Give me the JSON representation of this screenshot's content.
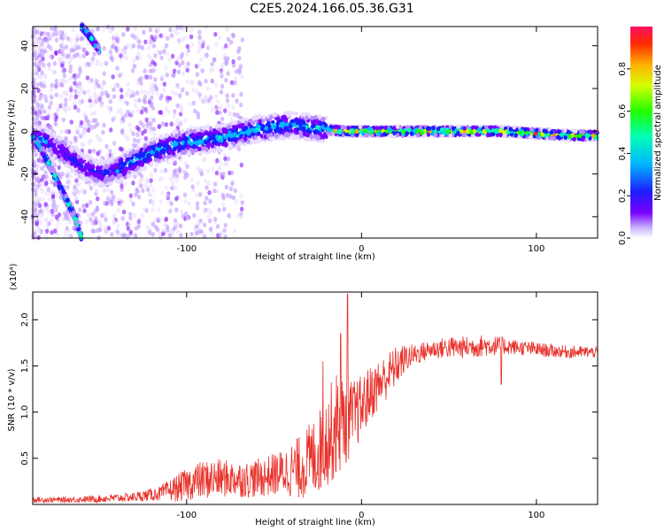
{
  "title": "C2E5.2024.166.05.36.G31",
  "chart_data": [
    {
      "type": "heatmap",
      "xlabel": "Height of straight line (km)",
      "ylabel": "Frequency (Hz)",
      "xlim": [
        -188,
        135
      ],
      "ylim": [
        -50,
        49
      ],
      "xticks": [
        -100,
        0,
        100
      ],
      "yticks": [
        -40,
        -20,
        0,
        20,
        40
      ],
      "colorbar": {
        "label": "Normalized spectral amplitude",
        "range": [
          0,
          1
        ],
        "ticks": [
          0.0,
          0.2,
          0.4,
          0.6,
          0.8
        ]
      },
      "ridges": [
        {
          "name": "main",
          "x": [
            -188,
            -180,
            -170,
            -160,
            -150,
            -140,
            -130,
            -120,
            -110,
            -100,
            -90,
            -80,
            -70,
            -60,
            -50,
            -40,
            -30,
            -20,
            -10,
            0,
            20,
            40,
            60,
            80,
            100,
            120,
            135
          ],
          "y": [
            -3,
            -5,
            -10,
            -16,
            -20,
            -18,
            -14,
            -10,
            -7,
            -5,
            -4,
            -3,
            -1,
            1,
            2,
            3,
            2,
            1,
            0,
            0,
            0,
            0,
            0,
            0,
            -1,
            -2,
            -2
          ]
        },
        {
          "name": "descending",
          "x": [
            -188,
            -182,
            -176,
            -170,
            -164,
            -160
          ],
          "y": [
            -3,
            -10,
            -20,
            -30,
            -40,
            -50
          ]
        },
        {
          "name": "upper",
          "x": [
            -160,
            -155,
            -150
          ],
          "y": [
            49,
            44,
            38
          ]
        }
      ]
    },
    {
      "type": "line",
      "xlabel": "Height of straight line (km)",
      "ylabel": "SNR (10 * v/v)",
      "scale_note": "(x10⁴)",
      "xlim": [
        -188,
        135
      ],
      "ylim": [
        0,
        2.3
      ],
      "xticks": [
        -100,
        0,
        100
      ],
      "yticks": [
        0.5,
        1.0,
        1.5,
        2.0
      ],
      "color": "#e8312a",
      "envelope": {
        "x": [
          -188,
          -170,
          -150,
          -130,
          -115,
          -105,
          -95,
          -85,
          -75,
          -65,
          -55,
          -45,
          -35,
          -25,
          -20,
          -15,
          -10,
          -5,
          0,
          5,
          10,
          15,
          20,
          25,
          30,
          40,
          50,
          60,
          70,
          80,
          90,
          100,
          110,
          120,
          135
        ],
        "mid": [
          0.05,
          0.05,
          0.06,
          0.08,
          0.12,
          0.18,
          0.25,
          0.28,
          0.28,
          0.27,
          0.3,
          0.35,
          0.4,
          0.55,
          0.7,
          0.85,
          0.9,
          0.95,
          1.05,
          1.2,
          1.3,
          1.4,
          1.5,
          1.58,
          1.62,
          1.68,
          1.7,
          1.7,
          1.72,
          1.72,
          1.7,
          1.68,
          1.66,
          1.65,
          1.65
        ],
        "amp": [
          0.03,
          0.03,
          0.04,
          0.05,
          0.08,
          0.15,
          0.2,
          0.22,
          0.2,
          0.2,
          0.22,
          0.25,
          0.35,
          0.45,
          0.5,
          0.6,
          0.5,
          0.4,
          0.35,
          0.3,
          0.28,
          0.25,
          0.22,
          0.15,
          0.12,
          0.1,
          0.12,
          0.12,
          0.12,
          0.1,
          0.08,
          0.08,
          0.07,
          0.07,
          0.06
        ]
      },
      "spikes": [
        {
          "x": -8,
          "y": 2.28
        },
        {
          "x": -12,
          "y": 1.85
        },
        {
          "x": -22,
          "y": 1.55
        },
        {
          "x": 80,
          "y": 1.3
        }
      ]
    }
  ]
}
